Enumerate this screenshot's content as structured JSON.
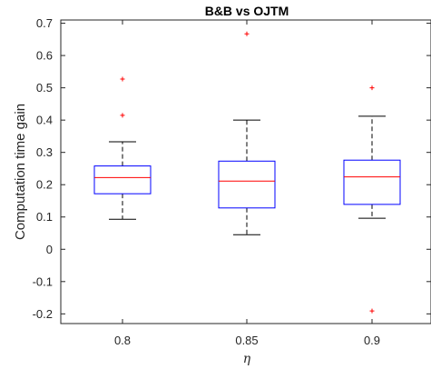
{
  "chart_data": {
    "type": "boxplot",
    "title": "B&B vs OJTM",
    "xlabel": "η",
    "ylabel": "Computation time gain",
    "categories": [
      "0.8",
      "0.85",
      "0.9"
    ],
    "ylim": [
      -0.23,
      0.71
    ],
    "yticks": [
      "-0.2",
      "-0.1",
      "0",
      "0.1",
      "0.2",
      "0.3",
      "0.4",
      "0.5",
      "0.6",
      "0.7"
    ],
    "grid": false,
    "boxes": [
      {
        "category": "0.8",
        "whisker_low": 0.093,
        "q1": 0.172,
        "median": 0.222,
        "q3": 0.258,
        "whisker_high": 0.333,
        "outliers": [
          0.527,
          0.415
        ]
      },
      {
        "category": "0.85",
        "whisker_low": 0.045,
        "q1": 0.128,
        "median": 0.211,
        "q3": 0.273,
        "whisker_high": 0.4,
        "outliers": [
          0.667
        ]
      },
      {
        "category": "0.9",
        "whisker_low": 0.096,
        "q1": 0.139,
        "median": 0.224,
        "q3": 0.276,
        "whisker_high": 0.412,
        "outliers": [
          0.5,
          -0.191
        ]
      }
    ],
    "colors": {
      "box": "#0000ff",
      "median": "#ff0000",
      "whisker": "#000000",
      "outlier": "#ff0000",
      "axis": "#262626"
    }
  }
}
